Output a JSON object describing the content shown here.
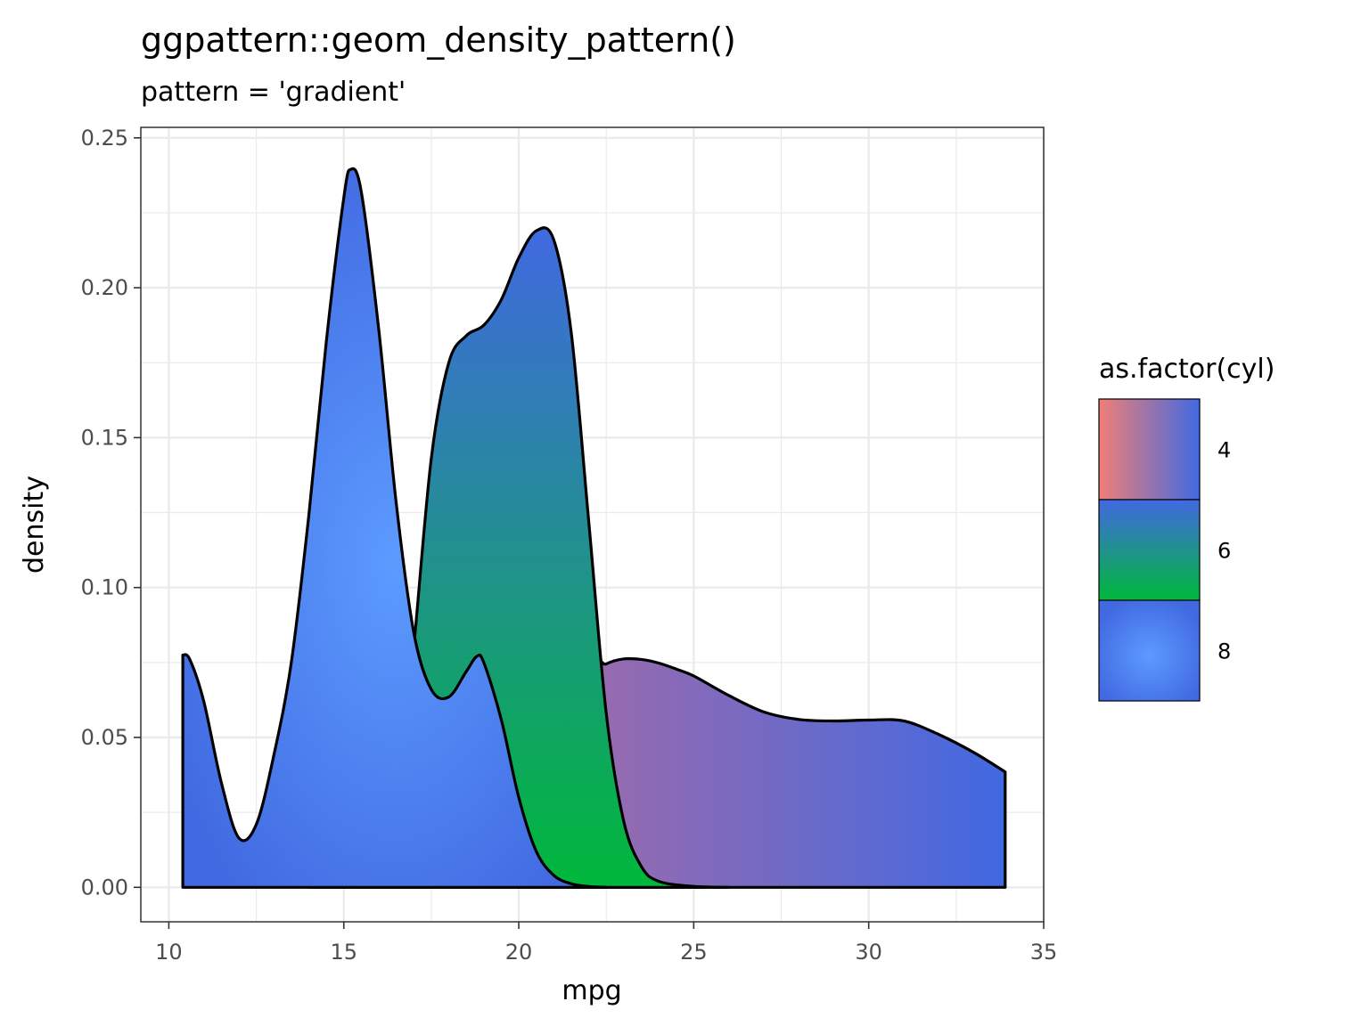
{
  "chart_data": {
    "type": "area",
    "title": "ggpattern::geom_density_pattern()",
    "subtitle": "pattern = 'gradient'",
    "xlabel": "mpg",
    "ylabel": "density",
    "xlim": [
      9.2,
      35.0
    ],
    "ylim": [
      -0.0115,
      0.2535
    ],
    "x_ticks": [
      10,
      15,
      20,
      25,
      30,
      35
    ],
    "x_tick_labels": [
      "10",
      "15",
      "20",
      "25",
      "30",
      "35"
    ],
    "y_ticks": [
      0.0,
      0.05,
      0.1,
      0.15,
      0.2,
      0.25
    ],
    "y_tick_labels": [
      "0.00",
      "0.05",
      "0.10",
      "0.15",
      "0.20",
      "0.25"
    ],
    "grid": true,
    "theme": "bw",
    "legend": {
      "title": "as.factor(cyl)",
      "position": "right",
      "entries": [
        "4",
        "6",
        "8"
      ]
    },
    "series": [
      {
        "group": "4",
        "colors": [
          "#9e6bab",
          "#4169e1"
        ],
        "x": [
          21.4,
          22.0,
          22.5,
          23.0,
          23.5,
          24.0,
          24.5,
          25.0,
          26.0,
          27.0,
          28.0,
          29.0,
          30.0,
          31.0,
          32.0,
          33.0,
          33.9
        ],
        "y": [
          0.0,
          0.07,
          0.0745,
          0.0762,
          0.076,
          0.0748,
          0.0728,
          0.0705,
          0.064,
          0.0585,
          0.056,
          0.0555,
          0.0558,
          0.0555,
          0.051,
          0.045,
          0.0385
        ]
      },
      {
        "group": "6",
        "colors": [
          "#4169e1",
          "#00b83a"
        ],
        "x": [
          14.0,
          15.0,
          16.0,
          16.5,
          17.0,
          17.5,
          18.0,
          18.5,
          19.0,
          19.5,
          20.0,
          20.5,
          21.0,
          21.5,
          22.0,
          22.5,
          23.0,
          23.5,
          24.0,
          25.0,
          26.0
        ],
        "y": [
          0.0,
          0.0005,
          0.004,
          0.02,
          0.08,
          0.143,
          0.175,
          0.184,
          0.1875,
          0.196,
          0.21,
          0.219,
          0.216,
          0.185,
          0.122,
          0.058,
          0.022,
          0.007,
          0.002,
          0.0003,
          0.0
        ]
      },
      {
        "group": "8",
        "colors": [
          "#5c9bff",
          "#4169e1"
        ],
        "x": [
          10.4,
          10.6,
          11.0,
          11.5,
          12.0,
          12.5,
          13.0,
          13.5,
          14.0,
          14.5,
          15.0,
          15.2,
          15.5,
          16.0,
          16.5,
          17.0,
          17.5,
          18.0,
          18.5,
          18.8,
          19.0,
          19.5,
          20.0,
          20.5,
          21.0,
          21.5,
          22.0,
          22.5
        ],
        "y": [
          0.0775,
          0.076,
          0.062,
          0.035,
          0.0165,
          0.021,
          0.044,
          0.075,
          0.124,
          0.182,
          0.23,
          0.2395,
          0.232,
          0.186,
          0.128,
          0.085,
          0.066,
          0.0635,
          0.072,
          0.077,
          0.075,
          0.056,
          0.03,
          0.012,
          0.004,
          0.0012,
          0.0003,
          0.0
        ]
      }
    ]
  }
}
